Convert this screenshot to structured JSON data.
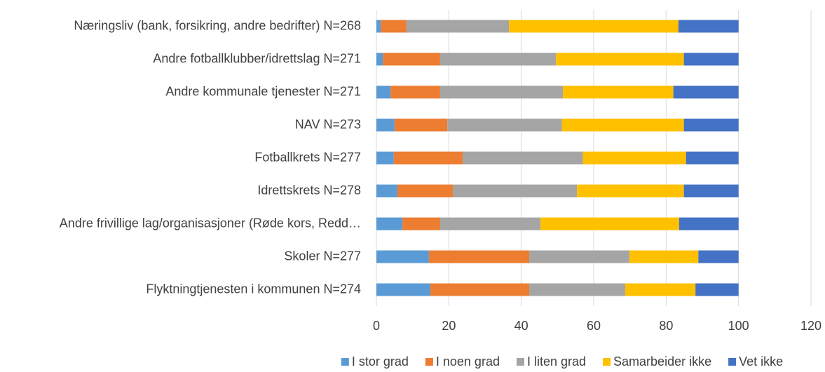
{
  "chart_data": {
    "type": "stacked-barh",
    "categories": [
      "Næringsliv (bank, forsikring, andre bedrifter) N=268",
      "Andre fotballklubber/idrettslag N=271",
      "Andre kommunale tjenester N=271",
      "NAV N=273",
      "Fotballkrets N=277",
      "Idrettskrets N=278",
      "Andre frivillige lag/organisasjoner (Røde kors, Redd…",
      "Skoler N=277",
      "Flyktningtjenesten i kommunen N=274"
    ],
    "series": [
      {
        "name": "I stor grad",
        "color": "#5b9bd5",
        "values": [
          1.2,
          1.8,
          3.9,
          5.0,
          4.8,
          5.8,
          7.2,
          14.5,
          14.9
        ]
      },
      {
        "name": "I noen grad",
        "color": "#ed7d31",
        "values": [
          7.1,
          15.8,
          13.7,
          14.6,
          19.0,
          15.3,
          10.4,
          27.7,
          27.3
        ]
      },
      {
        "name": "I liten grad",
        "color": "#a5a5a5",
        "values": [
          28.3,
          32.0,
          33.9,
          31.6,
          33.2,
          34.3,
          27.7,
          27.7,
          26.5
        ]
      },
      {
        "name": "Samarbeider ikke",
        "color": "#ffc000",
        "values": [
          46.8,
          35.3,
          30.5,
          33.7,
          28.5,
          29.5,
          38.3,
          19.0,
          19.4
        ]
      },
      {
        "name": "Vet ikke",
        "color": "#4472c4",
        "values": [
          16.6,
          15.1,
          18.0,
          15.1,
          14.5,
          15.1,
          16.4,
          11.1,
          11.9
        ]
      }
    ],
    "xlim": [
      0,
      120
    ],
    "xticks": [
      0,
      20,
      40,
      60,
      80,
      100,
      120
    ],
    "grid": true,
    "legend": "bottom"
  }
}
